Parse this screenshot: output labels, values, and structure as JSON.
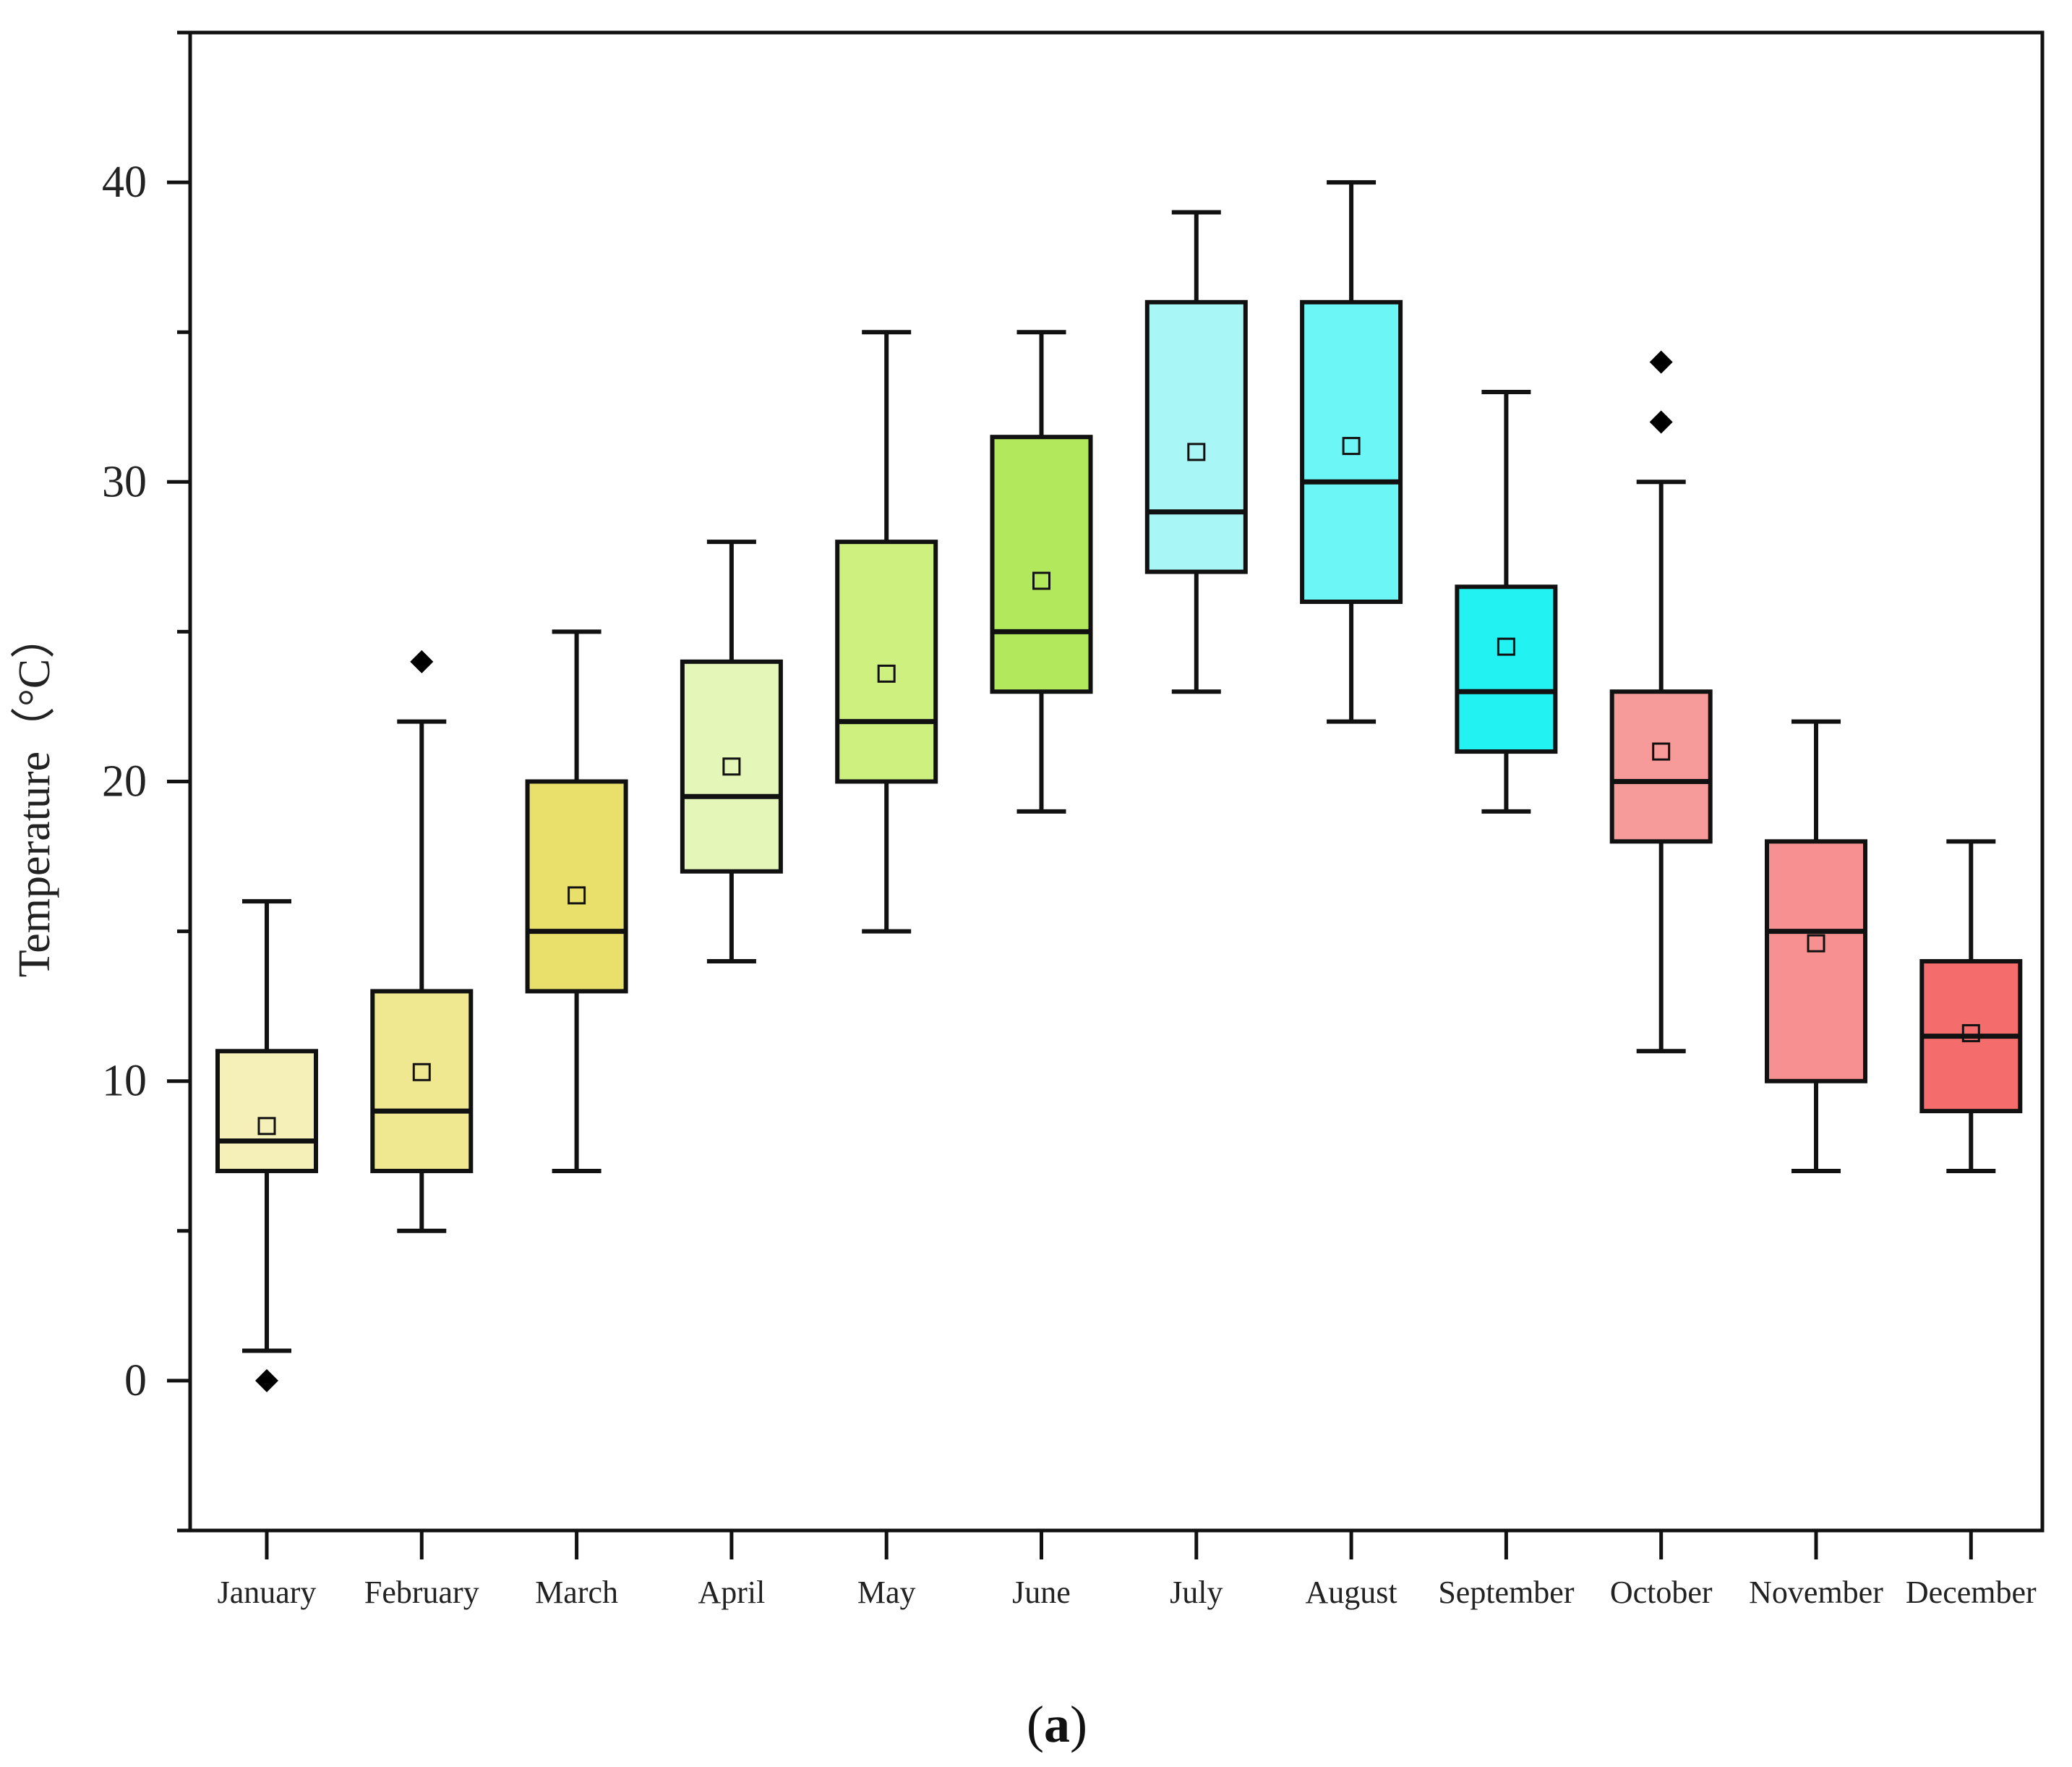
{
  "chart_data": {
    "type": "box",
    "ylabel": "Temperature（°C）",
    "ylim": [
      -5,
      45
    ],
    "yticks": [
      0,
      10,
      20,
      30,
      40
    ],
    "minor_yticks": [
      -5,
      5,
      15,
      25,
      35,
      45
    ],
    "caption_open": "(",
    "caption_letter": "a",
    "caption_close": ")",
    "categories": [
      "January",
      "February",
      "March",
      "April",
      "May",
      "June",
      "July",
      "August",
      "September",
      "October",
      "November",
      "December"
    ],
    "colors": [
      "#f5efb8",
      "#efe890",
      "#e8e06a",
      "#e4f6b8",
      "#cdf07e",
      "#b2e85c",
      "#a8f6f6",
      "#6cf6f6",
      "#22f2f2",
      "#f79a9a",
      "#f79090",
      "#f46c6c"
    ],
    "boxes": [
      {
        "month": "January",
        "min": 1,
        "q1": 7,
        "median": 8,
        "q3": 11,
        "max": 16,
        "mean": 8.5,
        "outliers": [
          0
        ]
      },
      {
        "month": "February",
        "min": 5,
        "q1": 7,
        "median": 9,
        "q3": 13,
        "max": 22,
        "mean": 10.3,
        "outliers": [
          24
        ]
      },
      {
        "month": "March",
        "min": 7,
        "q1": 13,
        "median": 15,
        "q3": 20,
        "max": 25,
        "mean": 16.2,
        "outliers": []
      },
      {
        "month": "April",
        "min": 14,
        "q1": 17,
        "median": 19.5,
        "q3": 24,
        "max": 28,
        "mean": 20.5,
        "outliers": []
      },
      {
        "month": "May",
        "min": 15,
        "q1": 20,
        "median": 22,
        "q3": 28,
        "max": 35,
        "mean": 23.6,
        "outliers": []
      },
      {
        "month": "June",
        "min": 19,
        "q1": 23,
        "median": 25,
        "q3": 31.5,
        "max": 35,
        "mean": 26.7,
        "outliers": []
      },
      {
        "month": "July",
        "min": 23,
        "q1": 27,
        "median": 29,
        "q3": 36,
        "max": 39,
        "mean": 31,
        "outliers": []
      },
      {
        "month": "August",
        "min": 22,
        "q1": 26,
        "median": 30,
        "q3": 36,
        "max": 40,
        "mean": 31.2,
        "outliers": []
      },
      {
        "month": "September",
        "min": 19,
        "q1": 21,
        "median": 23,
        "q3": 26.5,
        "max": 33,
        "mean": 24.5,
        "outliers": []
      },
      {
        "month": "October",
        "min": 11,
        "q1": 18,
        "median": 20,
        "q3": 23,
        "max": 30,
        "mean": 21,
        "outliers": [
          32,
          34
        ]
      },
      {
        "month": "November",
        "min": 7,
        "q1": 10,
        "median": 15,
        "q3": 18,
        "max": 22,
        "mean": 14.6,
        "outliers": []
      },
      {
        "month": "December",
        "min": 7,
        "q1": 9,
        "median": 11.5,
        "q3": 14,
        "max": 18,
        "mean": 11.6,
        "outliers": []
      }
    ]
  }
}
